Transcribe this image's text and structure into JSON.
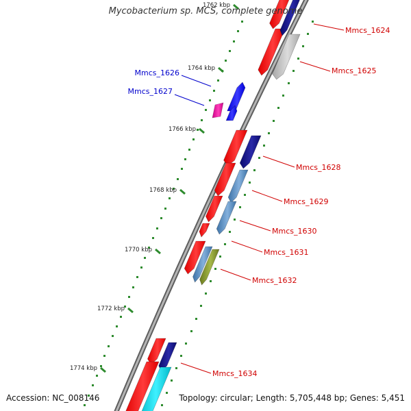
{
  "title": "Mycobacterium sp. MCS, complete genome",
  "footer": {
    "accession": "Accession: NC_008146",
    "summary": "Topology: circular; Length: 5,705,448 bp; Genes: 5,451"
  },
  "colors": {
    "backbone": "#8a8a8a",
    "tick": "#2e8b2e",
    "label_red": "#d00000",
    "label_blue": "#0000cc"
  },
  "tick_labels": [
    "1762 kbp",
    "1764 kbp",
    "1766 kbp",
    "1768 kbp",
    "1770 kbp",
    "1772 kbp",
    "1774 kbp"
  ],
  "genes": [
    {
      "label": "Mmcs_1624",
      "label_color": "red"
    },
    {
      "label": "Mmcs_1625",
      "label_color": "red"
    },
    {
      "label": "Mmcs_1626",
      "label_color": "blue"
    },
    {
      "label": "Mmcs_1627",
      "label_color": "blue"
    },
    {
      "label": "Mmcs_1628",
      "label_color": "red"
    },
    {
      "label": "Mmcs_1629",
      "label_color": "red"
    },
    {
      "label": "Mmcs_1630",
      "label_color": "red"
    },
    {
      "label": "Mmcs_1631",
      "label_color": "red"
    },
    {
      "label": "Mmcs_1632",
      "label_color": "red"
    },
    {
      "label": "Mmcs_1634",
      "label_color": "red"
    }
  ]
}
